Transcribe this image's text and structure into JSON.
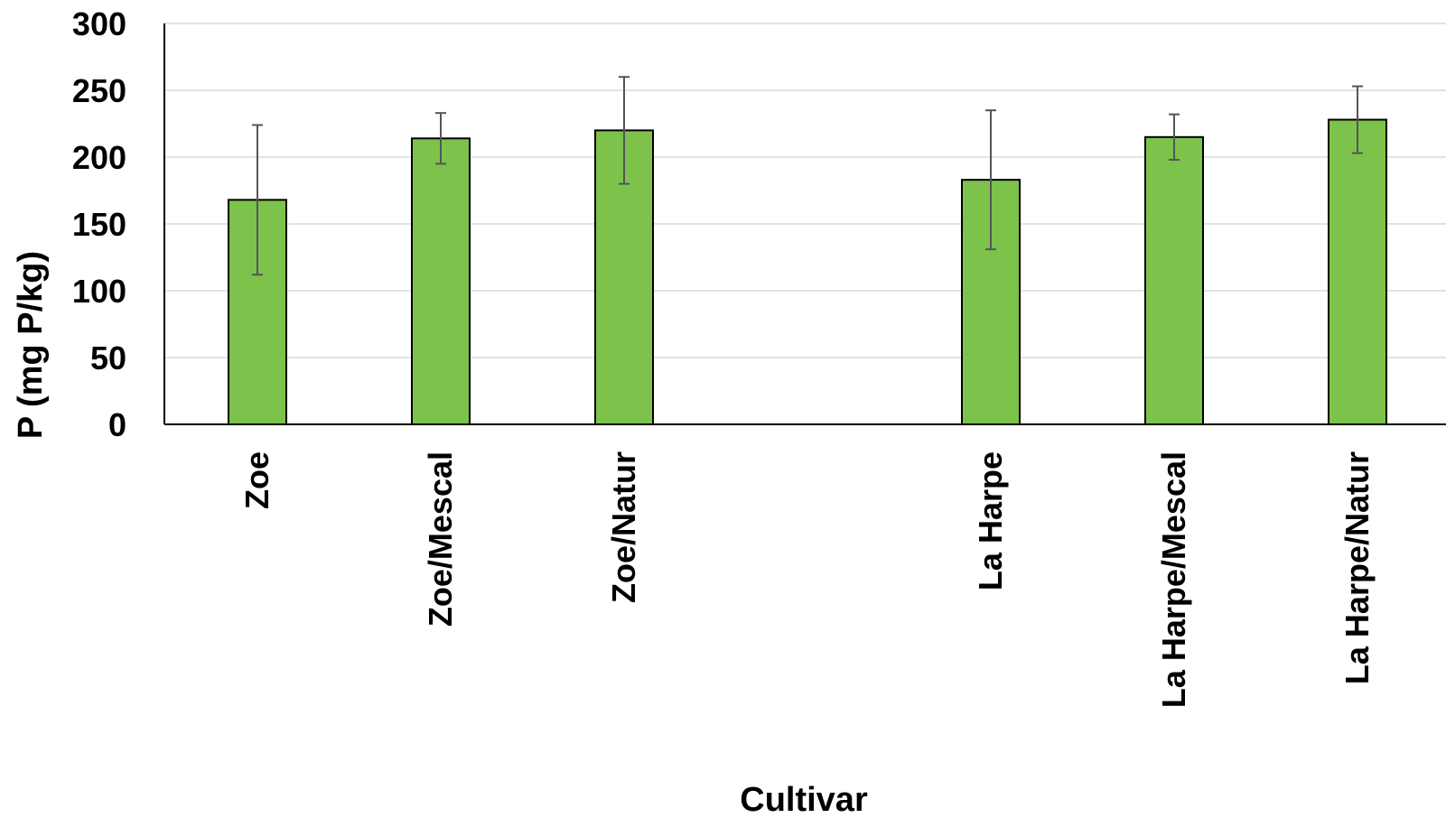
{
  "chart_data": {
    "type": "bar",
    "title": "",
    "xlabel": "Cultivar",
    "ylabel": "P (mg P/kg)",
    "ylim": [
      0,
      300
    ],
    "yticks": [
      0,
      50,
      100,
      150,
      200,
      250,
      300
    ],
    "grid": true,
    "legend": "none",
    "categories": [
      "Zoe",
      "Zoe/Mescal",
      "Zoe/Natur",
      "",
      "La Harpe",
      "La Harpe/Mescal",
      "La Harpe/Natur"
    ],
    "series": [
      {
        "values": [
          168,
          214,
          220,
          null,
          183,
          215,
          228
        ],
        "error": [
          56,
          19,
          40,
          null,
          52,
          17,
          25
        ]
      }
    ],
    "colors": {
      "bar_fill": "#7dc24b",
      "bar_stroke": "#000000",
      "error_bar": "#555555",
      "grid": "#d9d9d9",
      "axis": "#000000"
    }
  }
}
